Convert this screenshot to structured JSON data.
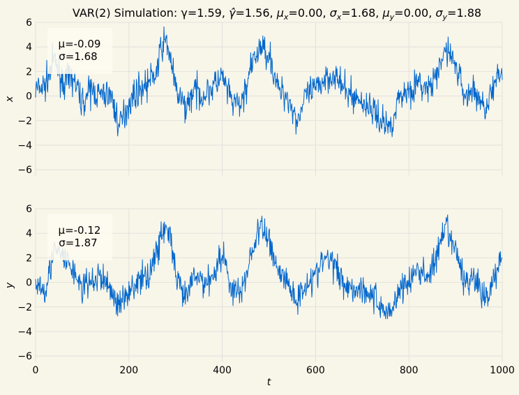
{
  "chart_data": {
    "type": "line",
    "title": "VAR(2) Simulation: γ=1.59, γ̂=1.56, μₓ=0.00, σₓ=1.68, μᵧ=0.00, σᵧ=1.88",
    "xlabel": "t",
    "xlim": [
      0,
      1000
    ],
    "x_ticks": [
      "0",
      "200",
      "400",
      "600",
      "800",
      "1000"
    ],
    "grid": true,
    "line_color": "#0066cc",
    "background": "#f8f5e9",
    "panels": [
      {
        "ylabel": "x",
        "ylim": [
          -6.5,
          6
        ],
        "y_ticks": [
          "−6",
          "−4",
          "−2",
          "0",
          "2",
          "4",
          "6"
        ],
        "stats": {
          "mean": "μ=-0.09",
          "std": "σ=1.68"
        },
        "series": [
          {
            "x": [
              0,
              20,
              40,
              60,
              80,
              100,
              120,
              140,
              160,
              180,
              200,
              220,
              240,
              260,
              270,
              280,
              290,
              300,
              320,
              340,
              360,
              380,
              400,
              420,
              440,
              460,
              480,
              500,
              520,
              540,
              560,
              580,
              600,
              620,
              640,
              660,
              680,
              700,
              720,
              740,
              760,
              780,
              800,
              820,
              840,
              860,
              880,
              900,
              920,
              940,
              960,
              980,
              1000
            ],
            "y": [
              0.5,
              0.8,
              3.0,
              1.0,
              1.5,
              -0.5,
              0.5,
              0.0,
              0.2,
              -2.5,
              -0.5,
              0.5,
              1.0,
              2.0,
              4.0,
              4.5,
              3.0,
              0.5,
              -1.0,
              0.5,
              0.0,
              0.8,
              1.5,
              -0.5,
              -0.8,
              2.0,
              4.0,
              3.5,
              0.5,
              0.0,
              -2.0,
              0.0,
              0.5,
              1.5,
              1.8,
              0.5,
              0.0,
              -0.5,
              -1.0,
              -2.0,
              -2.5,
              0.0,
              0.5,
              1.0,
              0.5,
              1.5,
              4.0,
              2.5,
              0.0,
              0.5,
              -1.0,
              0.5,
              2.0
            ]
          }
        ]
      },
      {
        "ylabel": "y",
        "ylim": [
          -6.5,
          6
        ],
        "y_ticks": [
          "−6",
          "−4",
          "−2",
          "0",
          "2",
          "4",
          "6"
        ],
        "stats": {
          "mean": "μ=-0.12",
          "std": "σ=1.87"
        },
        "series": [
          {
            "x": [
              0,
              20,
              40,
              60,
              80,
              100,
              120,
              140,
              160,
              180,
              200,
              220,
              240,
              260,
              270,
              280,
              290,
              300,
              320,
              340,
              360,
              380,
              400,
              420,
              440,
              460,
              480,
              500,
              520,
              540,
              560,
              580,
              600,
              620,
              640,
              660,
              680,
              700,
              720,
              740,
              760,
              780,
              800,
              820,
              840,
              860,
              880,
              900,
              920,
              940,
              960,
              980,
              1000
            ],
            "y": [
              0.0,
              -0.5,
              2.5,
              2.0,
              1.0,
              -0.5,
              0.0,
              0.5,
              -0.5,
              -2.0,
              -0.5,
              0.0,
              0.5,
              2.5,
              4.0,
              4.5,
              3.5,
              0.5,
              -1.5,
              0.5,
              0.0,
              0.5,
              2.5,
              -0.5,
              -1.0,
              2.0,
              4.5,
              3.5,
              1.0,
              0.0,
              -1.5,
              0.0,
              0.5,
              2.0,
              1.5,
              0.0,
              -0.5,
              -0.5,
              -1.0,
              -2.0,
              -2.5,
              -0.5,
              0.0,
              1.0,
              0.5,
              2.0,
              4.5,
              2.5,
              0.0,
              0.5,
              -1.5,
              0.0,
              2.5
            ]
          }
        ]
      }
    ]
  }
}
